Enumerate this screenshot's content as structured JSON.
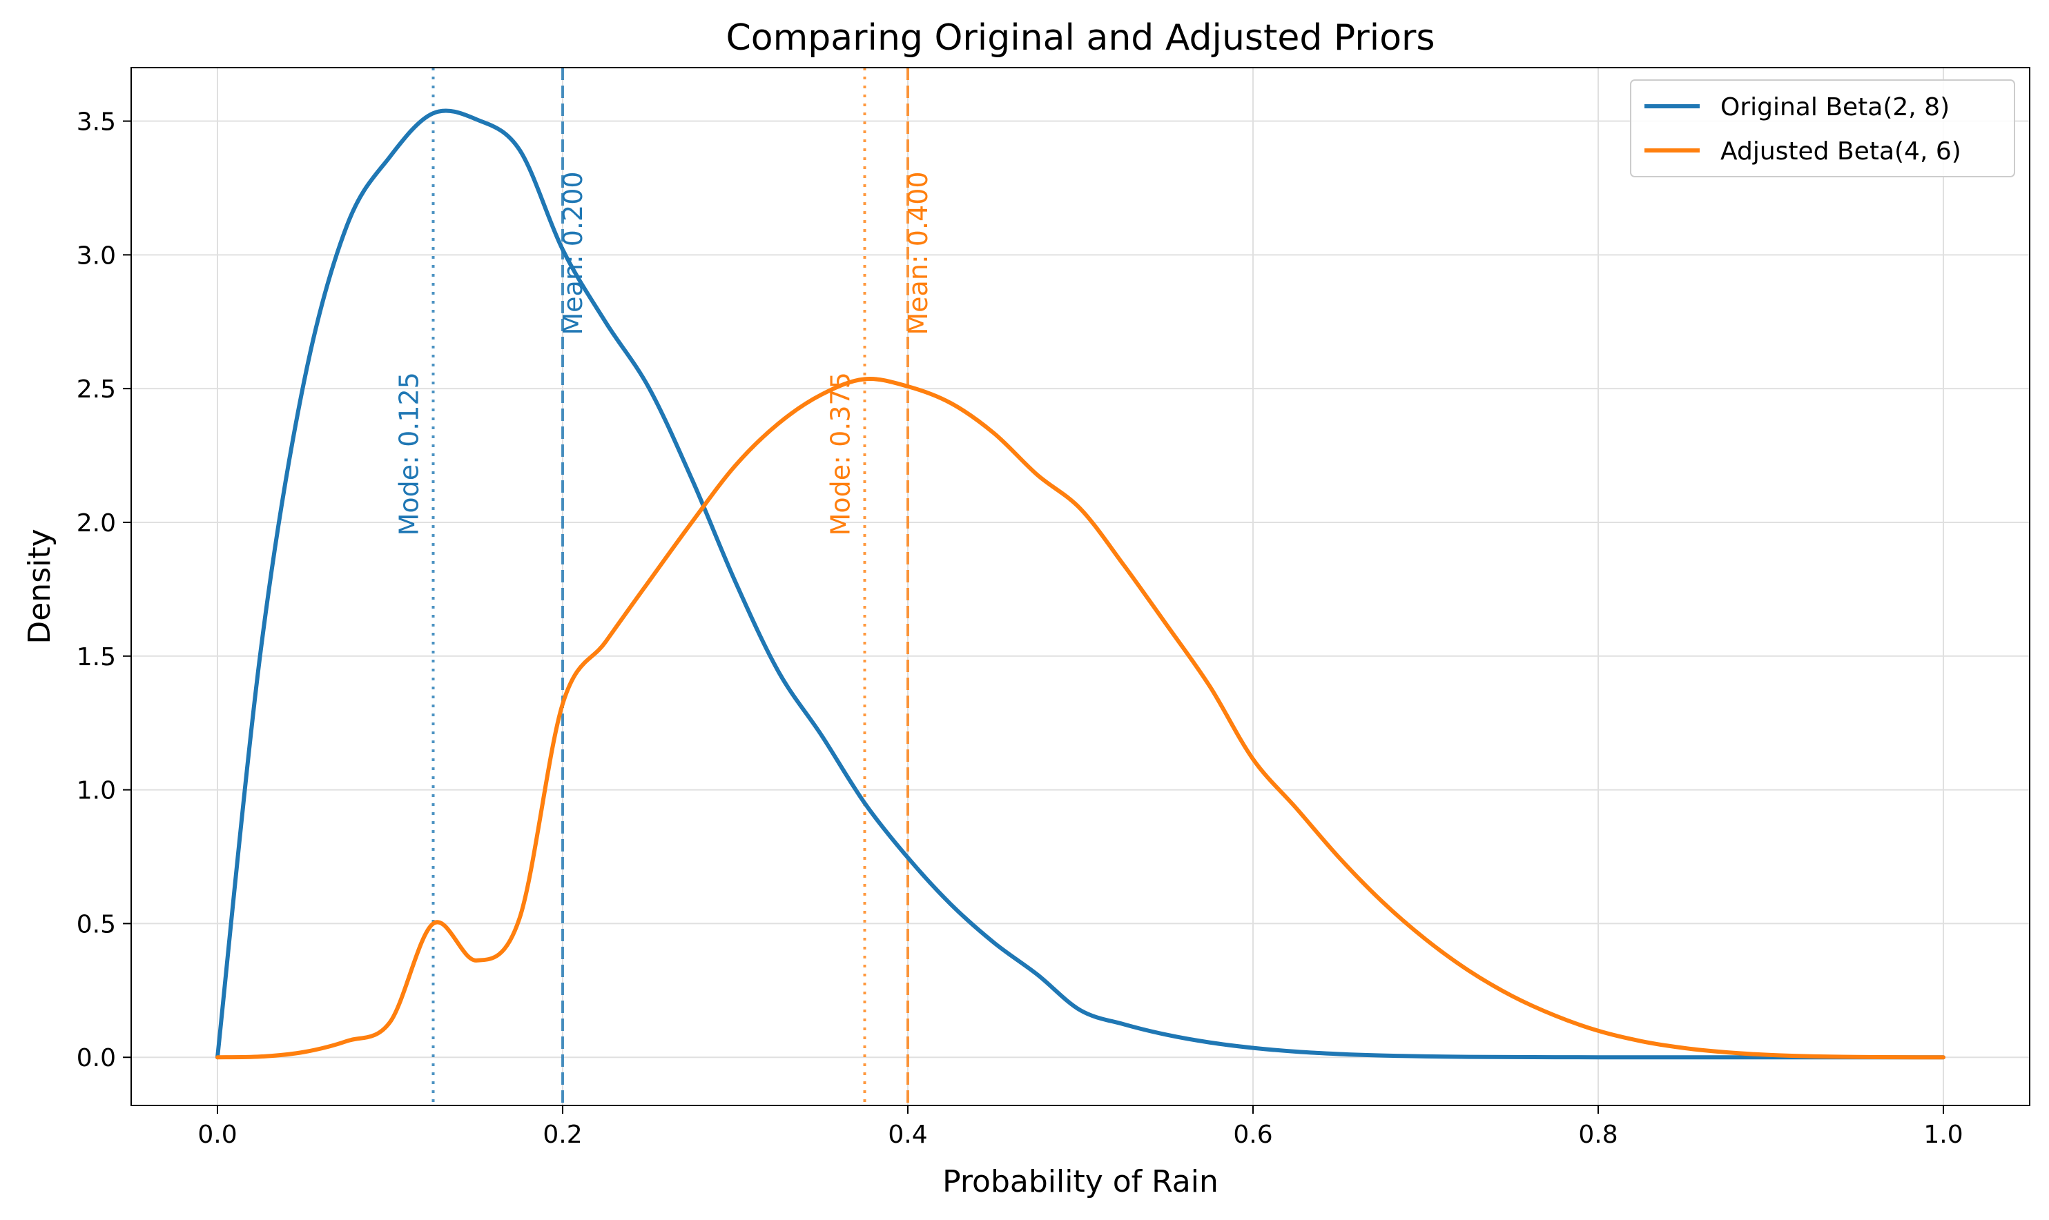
{
  "chart_data": {
    "type": "line",
    "title": "Comparing Original and Adjusted Priors",
    "xlabel": "Probability of Rain",
    "ylabel": "Density",
    "xlim": [
      -0.05,
      1.05
    ],
    "ylim": [
      -0.18,
      3.7
    ],
    "xticks": [
      0.0,
      0.2,
      0.4,
      0.6,
      0.8,
      1.0
    ],
    "xtick_labels": [
      "0.0",
      "0.2",
      "0.4",
      "0.6",
      "0.8",
      "1.0"
    ],
    "yticks": [
      0.0,
      0.5,
      1.0,
      1.5,
      2.0,
      2.5,
      3.0,
      3.5
    ],
    "ytick_labels": [
      "0.0",
      "0.5",
      "1.0",
      "1.5",
      "2.0",
      "2.5",
      "3.0",
      "3.5"
    ],
    "grid": true,
    "legend_position": "top-right",
    "x": [
      0.0,
      0.025,
      0.05,
      0.075,
      0.1,
      0.125,
      0.15,
      0.175,
      0.2,
      0.225,
      0.25,
      0.275,
      0.3,
      0.325,
      0.35,
      0.375,
      0.4,
      0.425,
      0.45,
      0.475,
      0.5,
      0.525,
      0.55,
      0.575,
      0.6,
      0.625,
      0.65,
      0.675,
      0.7,
      0.725,
      0.75,
      0.775,
      0.8,
      0.825,
      0.85,
      0.875,
      0.9,
      0.925,
      0.95,
      0.975,
      1.0
    ],
    "series": [
      {
        "name": "Original Beta(2, 8)",
        "color": "#1f77b4",
        "values": [
          0.0,
          1.5175,
          2.5213,
          3.1094,
          3.3675,
          3.5294,
          3.5066,
          3.3929,
          3.0199,
          2.7474,
          2.5028,
          2.1598,
          1.7788,
          1.4424,
          1.2037,
          0.9503,
          0.7465,
          0.5715,
          0.4281,
          0.3095,
          0.1758,
          0.1237,
          0.0842,
          0.0554,
          0.0352,
          0.0212,
          0.0123,
          0.0067,
          0.0035,
          0.0017,
          0.0008,
          0.0003,
          0.0001,
          0.0,
          0.0,
          0.0,
          0.0,
          0.0,
          0.0,
          0.0,
          0.0
        ]
      },
      {
        "name": "Adjusted Beta(4, 6)",
        "color": "#ff7f0e",
        "values": [
          0.0,
          0.0027,
          0.0196,
          0.0608,
          0.1318,
          0.5,
          0.3622,
          0.5192,
          1.3212,
          1.5542,
          1.7794,
          2.0015,
          2.2119,
          2.3694,
          2.4778,
          2.5355,
          2.5082,
          2.4454,
          2.3327,
          2.1775,
          2.0508,
          1.8412,
          1.6164,
          1.3865,
          1.1148,
          0.9317,
          0.7458,
          0.5812,
          0.4412,
          0.3241,
          0.2296,
          0.1561,
          0.0991,
          0.0602,
          0.0344,
          0.0182,
          0.0086,
          0.0036,
          0.0011,
          0.0002,
          0.0
        ]
      }
    ],
    "vlines": [
      {
        "x": 0.125,
        "style": "dotted",
        "color": "#1f77b4",
        "label": "Mode: 0.125"
      },
      {
        "x": 0.2,
        "style": "dashed",
        "color": "#1f77b4",
        "label": "Mean: 0.200"
      },
      {
        "x": 0.375,
        "style": "dotted",
        "color": "#ff7f0e",
        "label": "Mode: 0.375"
      },
      {
        "x": 0.4,
        "style": "dashed",
        "color": "#ff7f0e",
        "label": "Mean: 0.400"
      }
    ]
  }
}
